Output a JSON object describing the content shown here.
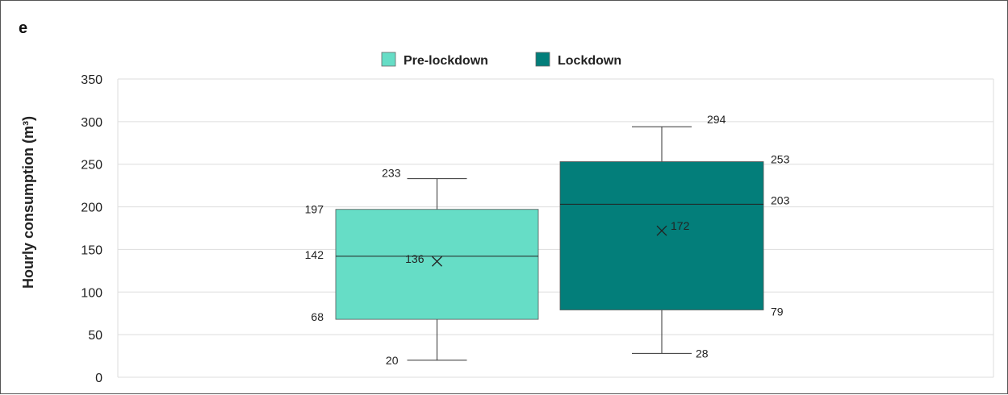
{
  "panel_letter": "e",
  "chart_data": {
    "type": "box",
    "ylabel": "Hourly consumption (m³)",
    "ylim": [
      0,
      350
    ],
    "yticks": [
      0,
      50,
      100,
      150,
      200,
      250,
      300,
      350
    ],
    "grid": true,
    "legend_position": "top-center",
    "series": [
      {
        "name": "Pre-lockdown",
        "color": "#66DDC6",
        "min": 20,
        "q1": 68,
        "median": 142,
        "q3": 197,
        "max": 233,
        "mean": 136,
        "labels": {
          "min": "20",
          "q1": "68",
          "median": "142",
          "q3": "197",
          "max": "233",
          "mean": "136"
        }
      },
      {
        "name": "Lockdown",
        "color": "#037E7A",
        "min": 28,
        "q1": 79,
        "median": 203,
        "q3": 253,
        "max": 294,
        "mean": 172,
        "labels": {
          "min": "28",
          "q1": "79",
          "median": "203",
          "q3": "253",
          "max": "294",
          "mean": "172"
        }
      }
    ]
  }
}
